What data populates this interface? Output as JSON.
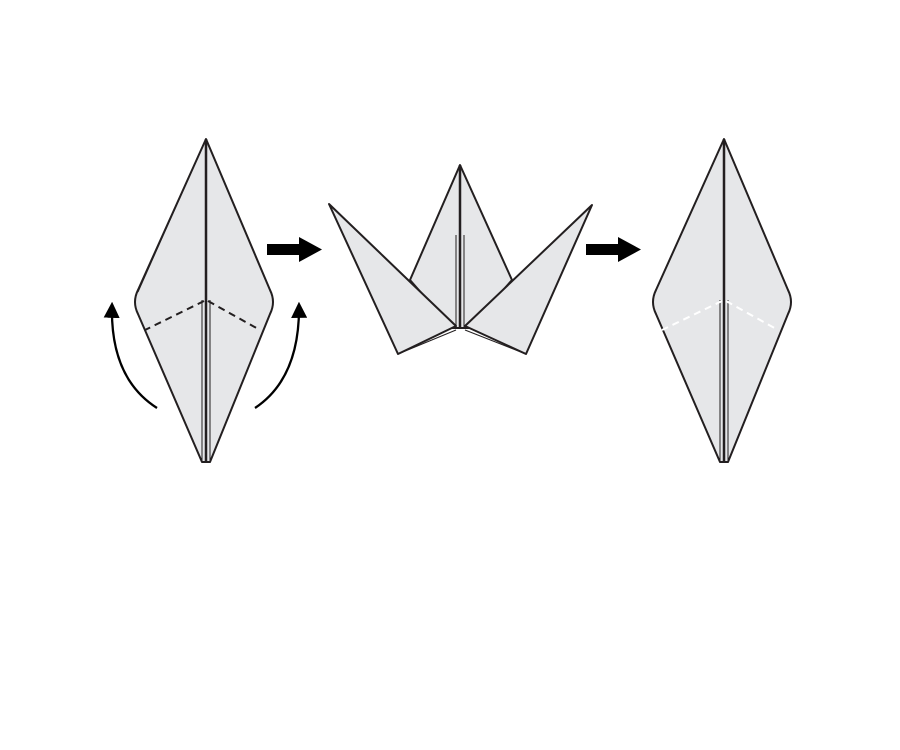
{
  "diagram": {
    "steps": [
      {
        "name": "kite-base-with-fold-lines"
      },
      {
        "name": "inside-reverse-folds-raised"
      },
      {
        "name": "kite-base-folded"
      }
    ],
    "colors": {
      "paper": "#e6e7e9",
      "stroke": "#231f20",
      "arrow": "#000000",
      "hidden-fold": "#ffffff"
    }
  }
}
